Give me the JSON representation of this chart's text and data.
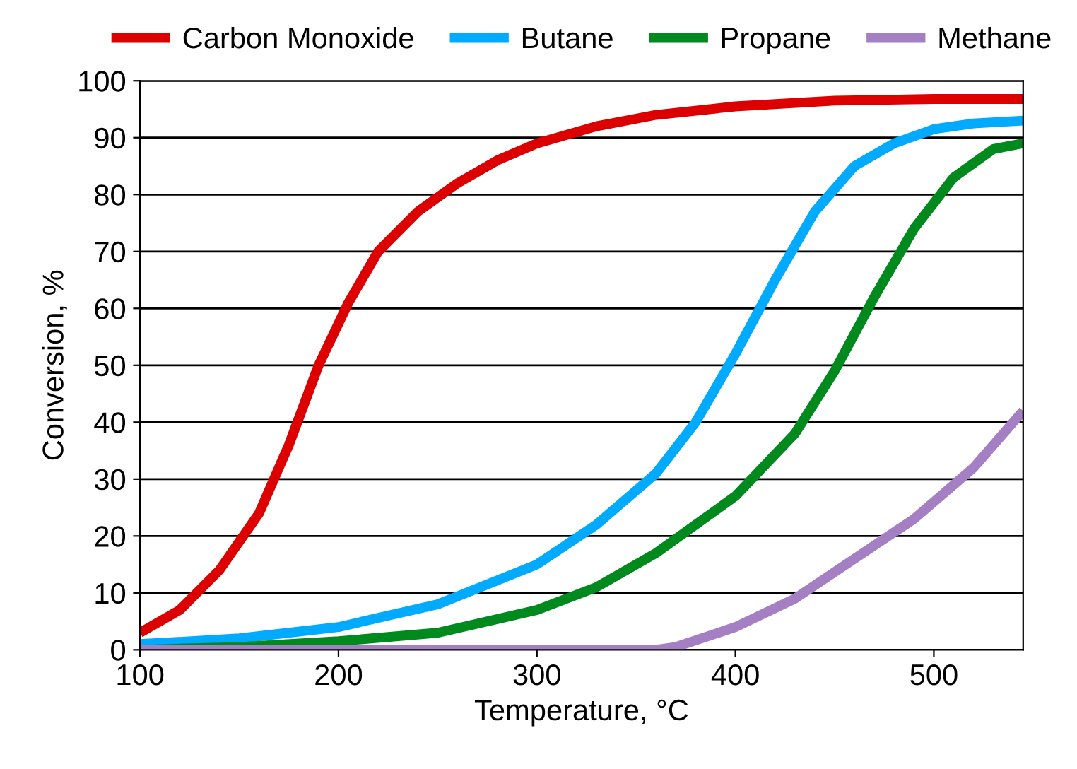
{
  "chart_data": {
    "type": "line",
    "xlabel": "Temperature, °C",
    "ylabel": "Conversion, %",
    "xlim": [
      100,
      545
    ],
    "xticks": [
      100,
      200,
      300,
      400,
      500
    ],
    "ylim": [
      0,
      100
    ],
    "yticks": [
      0,
      10,
      20,
      30,
      40,
      50,
      60,
      70,
      80,
      90,
      100
    ],
    "grid": "y",
    "legend": "top",
    "marker": "none",
    "line_style": "solid",
    "series": [
      {
        "name": "Carbon Monoxide",
        "color": "#dd0000",
        "x": [
          100,
          120,
          140,
          160,
          175,
          190,
          205,
          220,
          240,
          260,
          280,
          300,
          330,
          360,
          400,
          450,
          500,
          545
        ],
        "values": [
          3,
          7,
          14,
          24,
          36,
          50,
          61,
          70,
          77,
          82,
          86,
          89,
          92,
          94,
          95.5,
          96.5,
          96.8,
          96.8
        ]
      },
      {
        "name": "Butane",
        "color": "#00aaff",
        "x": [
          100,
          150,
          200,
          250,
          300,
          330,
          360,
          380,
          400,
          420,
          440,
          460,
          480,
          500,
          520,
          545
        ],
        "values": [
          1,
          2,
          4,
          8,
          15,
          22,
          31,
          40,
          52,
          65,
          77,
          85,
          89,
          91.5,
          92.5,
          93
        ]
      },
      {
        "name": "Propane",
        "color": "#008a1e",
        "x": [
          100,
          150,
          200,
          250,
          300,
          330,
          360,
          400,
          430,
          450,
          470,
          490,
          510,
          530,
          545
        ],
        "values": [
          0,
          0.5,
          1.5,
          3,
          7,
          11,
          17,
          27,
          38,
          49,
          62,
          74,
          83,
          88,
          89
        ]
      },
      {
        "name": "Methane",
        "color": "#a57fc3",
        "x": [
          100,
          360,
          370,
          400,
          430,
          460,
          490,
          520,
          545
        ],
        "values": [
          0,
          0,
          0.5,
          4,
          9,
          16,
          23,
          32,
          42
        ]
      }
    ]
  }
}
